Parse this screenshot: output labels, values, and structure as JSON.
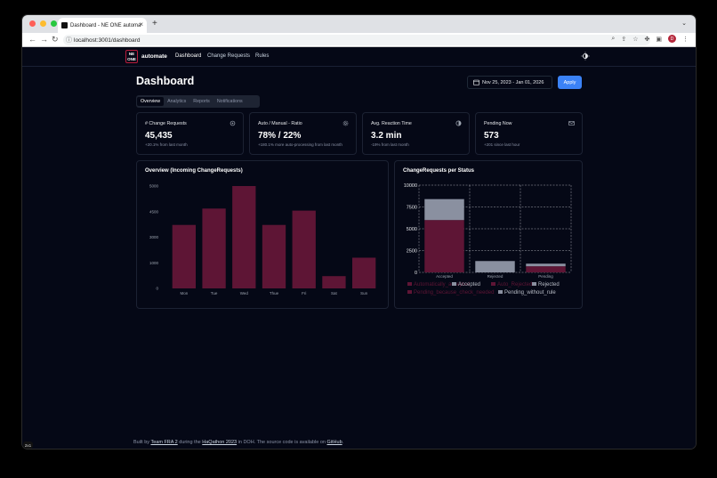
{
  "browser": {
    "tab_title": "Dashboard - NE ONE automa",
    "url": "localhost:3001/dashboard",
    "profile_initial": "D"
  },
  "nav": {
    "logo_line1": "NE",
    "logo_line2": "ONE",
    "brand": "automate",
    "links": [
      "Dashboard",
      "Change Requests",
      "Rules"
    ]
  },
  "header": {
    "title": "Dashboard",
    "date_range": "Nov 25, 2023 - Jan 01, 2026",
    "apply_label": "Apply"
  },
  "tabs": [
    "Overview",
    "Analytics",
    "Reports",
    "Notifications"
  ],
  "stats": [
    {
      "title": "# Change Requests",
      "value": "45,435",
      "sub": "+20.1% from last month",
      "icon": "gear-icon"
    },
    {
      "title": "Auto / Manual - Ratio",
      "value": "78% / 22%",
      "sub": "+180.1% more auto-processing from last month",
      "icon": "settings-icon"
    },
    {
      "title": "Avg. Reaction Time",
      "value": "3.2 min",
      "sub": "-19% from last month",
      "icon": "clock-icon"
    },
    {
      "title": "Pending Now",
      "value": "573",
      "sub": "+201 since last hour",
      "icon": "mail-icon"
    }
  ],
  "colors": {
    "bar": "#5e1535",
    "accepted_auto": "#5e1535",
    "accepted": "#8a90a0",
    "apply": "#3b82f6"
  },
  "chart_data": [
    {
      "type": "bar",
      "title": "Overview (Incoming ChangeRequests)",
      "categories": [
        "Mon",
        "Tue",
        "Wed",
        "Thue",
        "Fri",
        "Sat",
        "Sun"
      ],
      "values": [
        3100,
        3900,
        5000,
        3100,
        3800,
        600,
        1500
      ],
      "yticks": [
        "5000",
        "4500",
        "3000",
        "1000",
        "0"
      ],
      "ylim": [
        0,
        5000
      ]
    },
    {
      "type": "bar",
      "stacked": true,
      "title": "ChangeRequests per Status",
      "categories": [
        "Accepted",
        "Rejected",
        "Pending"
      ],
      "yticks": [
        "10000",
        "7500",
        "5000",
        "2500",
        "0"
      ],
      "ylim": [
        0,
        10000
      ],
      "grid": true,
      "series": [
        {
          "name": "Automatically_accepted",
          "values": [
            6000,
            0,
            700
          ],
          "color": "#5e1535"
        },
        {
          "name": "Accepted",
          "values": [
            2400,
            0,
            0
          ],
          "color": "#8a90a0"
        },
        {
          "name": "Auto_Rejected",
          "values": [
            0,
            0,
            0
          ],
          "color": "#5e1535"
        },
        {
          "name": "Rejected",
          "values": [
            0,
            1300,
            300
          ],
          "color": "#8a90a0"
        },
        {
          "name": "Pending_because_check_needed",
          "values": [
            0,
            0,
            0
          ],
          "color": "#5e1535"
        },
        {
          "name": "Pending_without_rule",
          "values": [
            0,
            0,
            0
          ],
          "color": "#8a90a0"
        }
      ],
      "legend": [
        "Automatically_accepted",
        "Accepted",
        "Auto_Rejected",
        "Rejected",
        "Pending_because_check_needed",
        "Pending_without_rule"
      ]
    }
  ],
  "footer": {
    "pre": "Built by ",
    "team": "Team FRA 2",
    "mid": " during the ",
    "event": "HaQathon 2023",
    "post": " in DOH. The source code is available on ",
    "repo": "GitHub",
    "end": "."
  },
  "nextjs_badge": "2x1"
}
